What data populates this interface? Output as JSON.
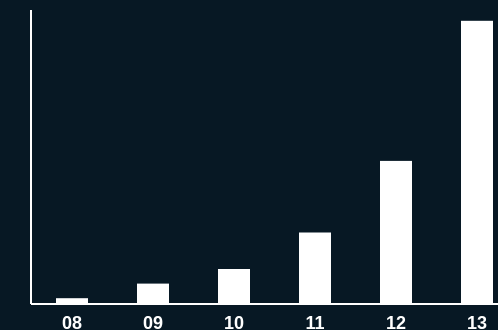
{
  "chart_data": {
    "type": "bar",
    "categories": [
      "08",
      "09",
      "10",
      "11",
      "12",
      "13"
    ],
    "values": [
      2,
      7,
      12,
      24.5,
      49,
      97
    ],
    "ylim": [
      0,
      100
    ],
    "grid": false,
    "legend": "none",
    "colors": {
      "background": "#071824",
      "bar": "#ffffff",
      "axis": "#ffffff",
      "text": "#ffffff"
    }
  }
}
